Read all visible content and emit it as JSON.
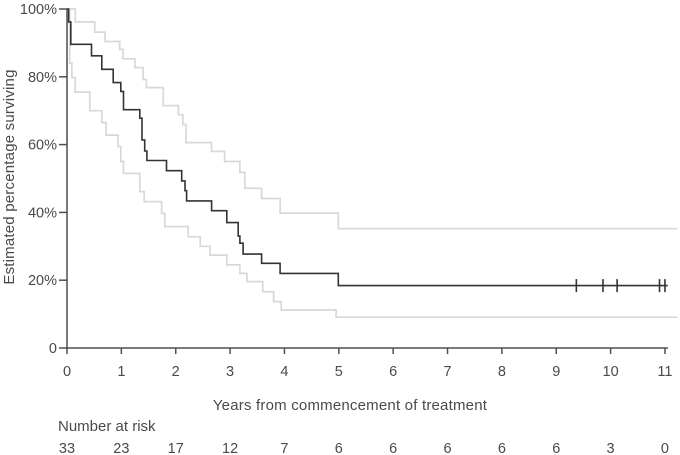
{
  "figure": {
    "ylabel": "Estimated percentage surviving",
    "xlabel": "Years from commencement of treatment",
    "risk_label": "Number at risk"
  },
  "colors": {
    "survival_curve": "#333333",
    "confidence_band": "#d8d8d8",
    "axis": "#4f4f4f",
    "text": "#4a4a4a",
    "background": "#ffffff"
  },
  "chart_data": {
    "type": "line",
    "subtype": "kaplan-meier-step",
    "title": "",
    "xlabel": "Years from commencement of treatment",
    "ylabel": "Estimated percentage surviving",
    "xlim": [
      0,
      11
    ],
    "ylim": [
      0,
      100
    ],
    "grid": false,
    "legend": "none",
    "x_ticks": [
      0,
      1,
      2,
      3,
      4,
      5,
      6,
      7,
      8,
      9,
      10,
      11
    ],
    "y_ticks": [
      {
        "value": 100,
        "label": "100%"
      },
      {
        "value": 80,
        "label": "80%"
      },
      {
        "value": 60,
        "label": "60%"
      },
      {
        "value": 40,
        "label": "40%"
      },
      {
        "value": 20,
        "label": "20%"
      },
      {
        "value": 0,
        "label": "0"
      }
    ],
    "series": [
      {
        "name": "survival-estimate",
        "role": "estimate",
        "color_key": "survival_curve",
        "end_time": 11.05,
        "steps": [
          [
            0,
            100
          ],
          [
            0.03,
            96.2
          ],
          [
            0.07,
            89.6
          ],
          [
            0.45,
            86.2
          ],
          [
            0.64,
            82.2
          ],
          [
            0.85,
            78.3
          ],
          [
            0.99,
            75.7
          ],
          [
            1.04,
            70.3
          ],
          [
            1.34,
            67.8
          ],
          [
            1.38,
            61.4
          ],
          [
            1.43,
            58.1
          ],
          [
            1.47,
            55.3
          ],
          [
            1.83,
            52.3
          ],
          [
            2.11,
            49.3
          ],
          [
            2.17,
            46.4
          ],
          [
            2.2,
            43.4
          ],
          [
            2.66,
            40.5
          ],
          [
            2.94,
            37.0
          ],
          [
            3.15,
            33.0
          ],
          [
            3.18,
            30.9
          ],
          [
            3.24,
            27.7
          ],
          [
            3.58,
            25.0
          ],
          [
            3.92,
            22.0
          ],
          [
            4.99,
            18.4
          ]
        ]
      },
      {
        "name": "upper-confidence-limit",
        "role": "upper-ci",
        "color_key": "confidence_band",
        "end_time": 11.23,
        "steps": [
          [
            0,
            100
          ],
          [
            0.15,
            96.2
          ],
          [
            0.51,
            93.2
          ],
          [
            0.7,
            90.4
          ],
          [
            0.97,
            88.1
          ],
          [
            1.03,
            85.3
          ],
          [
            1.25,
            82.7
          ],
          [
            1.4,
            79.2
          ],
          [
            1.46,
            76.8
          ],
          [
            1.77,
            71.5
          ],
          [
            2.05,
            68.8
          ],
          [
            2.13,
            65.9
          ],
          [
            2.19,
            60.6
          ],
          [
            2.66,
            58.0
          ],
          [
            2.9,
            55.0
          ],
          [
            3.18,
            51.8
          ],
          [
            3.27,
            47.1
          ],
          [
            3.58,
            44.1
          ],
          [
            3.92,
            39.8
          ],
          [
            4.99,
            35.2
          ]
        ]
      },
      {
        "name": "lower-confidence-limit",
        "role": "lower-ci",
        "color_key": "confidence_band",
        "end_time": 11.23,
        "steps": [
          [
            0,
            100
          ],
          [
            0.05,
            84.0
          ],
          [
            0.09,
            79.8
          ],
          [
            0.15,
            75.5
          ],
          [
            0.42,
            70.0
          ],
          [
            0.64,
            66.5
          ],
          [
            0.72,
            62.8
          ],
          [
            0.94,
            59.4
          ],
          [
            0.99,
            55.0
          ],
          [
            1.04,
            51.5
          ],
          [
            1.34,
            46.1
          ],
          [
            1.42,
            43.2
          ],
          [
            1.74,
            39.7
          ],
          [
            1.8,
            35.8
          ],
          [
            2.23,
            32.8
          ],
          [
            2.45,
            30.0
          ],
          [
            2.63,
            27.4
          ],
          [
            2.94,
            24.5
          ],
          [
            3.18,
            22.0
          ],
          [
            3.31,
            19.6
          ],
          [
            3.6,
            16.6
          ],
          [
            3.8,
            13.7
          ],
          [
            3.94,
            11.2
          ],
          [
            4.95,
            9.1
          ]
        ]
      }
    ],
    "censor_marks": {
      "on_series": "survival-estimate",
      "value": 18.4,
      "times": [
        9.37,
        9.86,
        10.12,
        10.9,
        11.0
      ]
    },
    "risk_table": {
      "label": "Number at risk",
      "times": [
        0,
        1,
        2,
        3,
        4,
        5,
        6,
        7,
        8,
        9,
        10,
        11
      ],
      "counts": [
        33,
        23,
        17,
        12,
        7,
        6,
        6,
        6,
        6,
        6,
        3,
        0
      ]
    }
  }
}
